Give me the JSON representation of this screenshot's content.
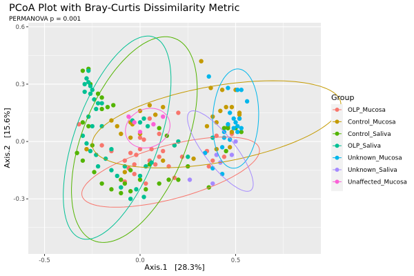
{
  "chart_data": {
    "type": "scatter",
    "title": "PCoA Plot with Bray-Curtis Dissimilarity Metric",
    "subtitle": "PERMANOVA p = 0.001",
    "xlabel": "Axis.1   [28.3%]",
    "ylabel": "Axis.2   [15.6%]",
    "xlim": [
      -0.585,
      0.946
    ],
    "ylim": [
      -0.588,
      0.621
    ],
    "x_ticks": [
      -0.5,
      0.0,
      0.5
    ],
    "x_tick_labels": [
      "-0.5",
      "0.0",
      "0.5"
    ],
    "y_ticks": [
      -0.3,
      0.0,
      0.3,
      0.6
    ],
    "y_tick_labels": [
      "-0.3",
      "0.0",
      "0.3",
      "0.6"
    ],
    "grid": true,
    "legend": {
      "title": "Group",
      "position": "right"
    },
    "series": [
      {
        "name": "OLP_Mucosa",
        "color": "#F8766D",
        "ellipse": {
          "cx": 0.16,
          "cy": -0.16,
          "rx": 0.48,
          "ry": 0.14,
          "angle_deg": 15
        },
        "points": [
          [
            -0.32,
            0.09
          ],
          [
            -0.28,
            -0.04
          ],
          [
            -0.2,
            -0.02
          ],
          [
            -0.15,
            -0.05
          ],
          [
            -0.1,
            -0.2
          ],
          [
            -0.08,
            -0.21
          ],
          [
            -0.06,
            -0.14
          ],
          [
            -0.03,
            -0.17
          ],
          [
            0.0,
            0.02
          ],
          [
            0.02,
            0.01
          ],
          [
            0.05,
            -0.1
          ],
          [
            0.08,
            -0.12
          ],
          [
            0.1,
            -0.08
          ],
          [
            -0.02,
            -0.07
          ],
          [
            0.03,
            -0.22
          ],
          [
            0.0,
            -0.04
          ],
          [
            0.12,
            -0.05
          ],
          [
            0.15,
            -0.13
          ],
          [
            0.22,
            -0.08
          ],
          [
            0.18,
            -0.19
          ],
          [
            0.35,
            -0.05
          ],
          [
            0.38,
            -0.1
          ],
          [
            0.4,
            0.03
          ],
          [
            0.52,
            0.12
          ],
          [
            0.48,
            0.04
          ],
          [
            0.36,
            -0.13
          ],
          [
            -0.03,
            -0.12
          ],
          [
            0.05,
            0.12
          ],
          [
            0.08,
            0.14
          ],
          [
            0.06,
            -0.04
          ],
          [
            -0.05,
            -0.06
          ],
          [
            0.18,
            -0.02
          ],
          [
            0.44,
            -0.08
          ],
          [
            0.2,
            0.15
          ],
          [
            -0.08,
            -0.1
          ],
          [
            0.1,
            0.04
          ]
        ]
      },
      {
        "name": "Control_Mucosa",
        "color": "#C49A00",
        "ellipse": {
          "cx": 0.4,
          "cy": 0.09,
          "rx": 0.66,
          "ry": 0.2,
          "angle_deg": 10
        },
        "points": [
          [
            -0.12,
            0.08
          ],
          [
            -0.15,
            0.11
          ],
          [
            -0.1,
            0.04
          ],
          [
            -0.04,
            0.09
          ],
          [
            -0.05,
            0.1
          ],
          [
            0.0,
            0.04
          ],
          [
            0.0,
            0.16
          ],
          [
            0.05,
            0.19
          ],
          [
            0.08,
            0.14
          ],
          [
            0.12,
            0.18
          ],
          [
            -0.05,
            0.02
          ],
          [
            0.32,
            0.42
          ],
          [
            0.37,
            0.28
          ],
          [
            0.43,
            0.27
          ],
          [
            0.5,
            0.27
          ],
          [
            0.45,
            0.18
          ],
          [
            0.48,
            0.18
          ],
          [
            0.52,
            0.15
          ],
          [
            0.42,
            0.16
          ],
          [
            0.38,
            0.13
          ],
          [
            0.4,
            0.1
          ],
          [
            0.35,
            0.08
          ],
          [
            0.46,
            0.08
          ],
          [
            0.52,
            0.14
          ],
          [
            0.48,
            0.05
          ],
          [
            0.4,
            -0.04
          ],
          [
            0.47,
            -0.03
          ],
          [
            0.28,
            -0.09
          ],
          [
            0.12,
            -0.1
          ],
          [
            -0.08,
            -0.16
          ],
          [
            -0.28,
            -0.04
          ]
        ]
      },
      {
        "name": "Control_Saliva",
        "color": "#53B400",
        "ellipse": {
          "cx": -0.03,
          "cy": 0.01,
          "rx": 0.27,
          "ry": 0.57,
          "angle_deg": -22
        },
        "points": [
          [
            -0.3,
            0.37
          ],
          [
            -0.27,
            0.38
          ],
          [
            -0.26,
            0.3
          ],
          [
            -0.22,
            0.25
          ],
          [
            -0.2,
            0.23
          ],
          [
            -0.2,
            0.17
          ],
          [
            -0.17,
            0.18
          ],
          [
            -0.3,
            0.1
          ],
          [
            -0.27,
            0.08
          ],
          [
            -0.33,
            -0.06
          ],
          [
            -0.3,
            -0.1
          ],
          [
            -0.25,
            -0.02
          ],
          [
            -0.24,
            -0.16
          ],
          [
            -0.2,
            -0.22
          ],
          [
            -0.15,
            -0.25
          ],
          [
            -0.1,
            -0.2
          ],
          [
            -0.08,
            -0.22
          ],
          [
            -0.05,
            -0.15
          ],
          [
            0.0,
            -0.2
          ],
          [
            0.03,
            -0.25
          ],
          [
            0.05,
            -0.12
          ],
          [
            0.1,
            -0.22
          ],
          [
            0.15,
            -0.2
          ],
          [
            0.2,
            -0.2
          ],
          [
            0.25,
            -0.13
          ],
          [
            0.1,
            0.07
          ],
          [
            0.14,
            0.03
          ],
          [
            -0.14,
            0.19
          ],
          [
            0.44,
            0.07
          ],
          [
            0.46,
            0.07
          ],
          [
            0.5,
            0.07
          ],
          [
            0.53,
            0.05
          ],
          [
            0.45,
            -0.05
          ],
          [
            0.36,
            -0.24
          ],
          [
            -0.1,
            -0.27
          ],
          [
            -0.05,
            -0.26
          ]
        ]
      },
      {
        "name": "OLP_Saliva",
        "color": "#00C094",
        "ellipse": {
          "cx": -0.12,
          "cy": 0.02,
          "rx": 0.22,
          "ry": 0.56,
          "angle_deg": -20
        },
        "points": [
          [
            -0.27,
            0.37
          ],
          [
            -0.28,
            0.33
          ],
          [
            -0.27,
            0.31
          ],
          [
            -0.29,
            0.3
          ],
          [
            -0.26,
            0.29
          ],
          [
            -0.25,
            0.27
          ],
          [
            -0.29,
            0.26
          ],
          [
            -0.26,
            0.25
          ],
          [
            -0.24,
            0.22
          ],
          [
            -0.22,
            0.2
          ],
          [
            -0.2,
            0.2
          ],
          [
            -0.23,
            0.17
          ],
          [
            -0.27,
            0.13
          ],
          [
            -0.25,
            0.08
          ],
          [
            -0.2,
            0.08
          ],
          [
            -0.3,
            0.03
          ],
          [
            -0.28,
            -0.01
          ],
          [
            -0.26,
            -0.05
          ],
          [
            -0.23,
            -0.07
          ],
          [
            -0.22,
            -0.13
          ],
          [
            -0.18,
            -0.09
          ],
          [
            -0.15,
            -0.15
          ],
          [
            -0.12,
            -0.18
          ],
          [
            -0.1,
            -0.24
          ],
          [
            -0.05,
            -0.3
          ],
          [
            -0.02,
            -0.25
          ],
          [
            0.02,
            -0.29
          ],
          [
            0.0,
            -0.18
          ],
          [
            0.03,
            -0.13
          ],
          [
            0.06,
            -0.11
          ],
          [
            0.0,
            0.1
          ],
          [
            0.02,
            0.12
          ],
          [
            0.04,
            0.08
          ],
          [
            -0.04,
            0.11
          ],
          [
            0.2,
            0.0
          ],
          [
            0.18,
            -0.02
          ],
          [
            0.25,
            -0.08
          ],
          [
            0.38,
            0.02
          ],
          [
            -0.15,
            -0.04
          ],
          [
            -0.08,
            -0.13
          ]
        ]
      },
      {
        "name": "Unknown_Mucosa",
        "color": "#00B6EB",
        "ellipse": {
          "cx": 0.5,
          "cy": 0.12,
          "rx": 0.12,
          "ry": 0.26,
          "angle_deg": -3
        },
        "points": [
          [
            0.36,
            0.34
          ],
          [
            0.46,
            0.28
          ],
          [
            0.51,
            0.27
          ],
          [
            0.53,
            0.27
          ],
          [
            0.56,
            0.21
          ],
          [
            0.47,
            0.15
          ],
          [
            0.49,
            0.12
          ],
          [
            0.52,
            0.12
          ],
          [
            0.5,
            0.1
          ],
          [
            0.46,
            0.09
          ],
          [
            0.51,
            0.08
          ],
          [
            0.49,
            0.07
          ],
          [
            0.53,
            0.07
          ],
          [
            0.51,
            0.05
          ],
          [
            0.44,
            0.05
          ],
          [
            0.44,
            0.02
          ],
          [
            0.47,
            0.01
          ],
          [
            0.43,
            -0.03
          ],
          [
            0.34,
            -0.06
          ],
          [
            0.38,
            -0.14
          ],
          [
            0.43,
            -0.17
          ]
        ]
      },
      {
        "name": "Unknown_Saliva",
        "color": "#A58AFF",
        "ellipse": {
          "cx": 0.42,
          "cy": -0.05,
          "rx": 0.26,
          "ry": 0.08,
          "angle_deg": -52
        },
        "points": [
          [
            0.4,
            -0.07
          ],
          [
            0.48,
            -0.07
          ],
          [
            0.42,
            -0.11
          ],
          [
            0.26,
            -0.2
          ],
          [
            0.38,
            -0.22
          ],
          [
            0.5,
            0.0
          ]
        ]
      },
      {
        "name": "Unaffected_Mucosa",
        "color": "#FB61D7",
        "ellipse": {
          "cx": 0.04,
          "cy": 0.07,
          "rx": 0.12,
          "ry": 0.1,
          "angle_deg": 25
        },
        "points": [
          [
            -0.06,
            0.13
          ],
          [
            -0.03,
            0.1
          ],
          [
            0.07,
            0.09
          ],
          [
            0.12,
            0.13
          ],
          [
            0.0,
            0.05
          ]
        ]
      }
    ]
  }
}
